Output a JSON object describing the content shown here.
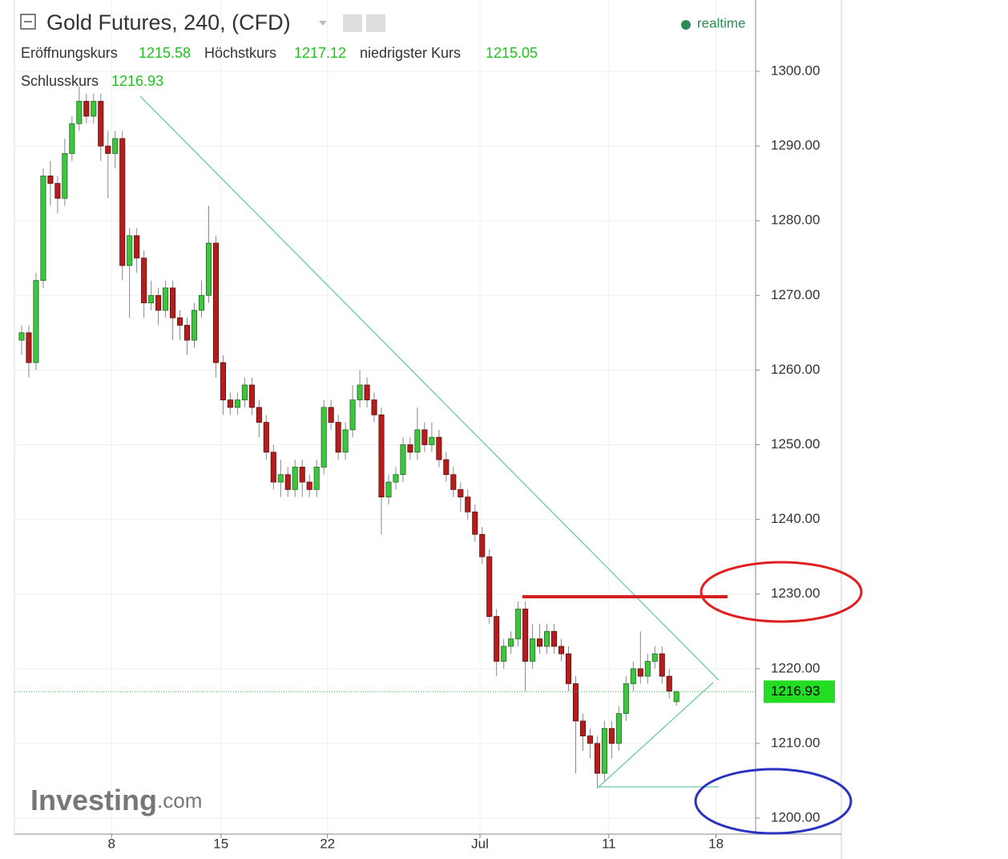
{
  "chart_data": {
    "type": "candlestick",
    "title": "Gold Futures, 240, (CFD)",
    "status": "realtime",
    "open_label": "Eröffnungskurs",
    "high_label": "Höchstkurs",
    "low_label": "niedrigster Kurs",
    "close_label": "Schlusskurs",
    "watermark": "Investing",
    "watermark_suffix": ".com",
    "up_color": "#3ec43e",
    "down_color": "#b71c1c",
    "grid": true,
    "x": [
      1,
      2,
      3,
      4,
      5,
      6,
      7,
      8,
      9,
      10,
      11,
      12,
      13,
      14,
      15,
      16,
      17,
      18,
      19,
      20,
      21,
      22,
      23,
      24,
      25,
      26,
      27,
      28,
      29,
      30,
      31,
      32,
      33,
      34,
      35,
      36,
      37,
      38,
      39,
      40,
      41,
      42,
      43,
      44,
      45,
      46,
      47,
      48,
      49,
      50,
      51,
      52,
      53,
      54,
      55,
      56,
      57,
      58,
      59,
      60,
      61,
      62,
      63,
      64,
      65,
      66,
      67,
      68,
      69,
      70,
      71,
      72,
      73,
      74,
      75,
      76,
      77,
      78,
      79,
      80,
      81,
      82,
      83,
      84,
      85,
      86,
      87,
      88,
      89,
      90,
      91,
      92
    ],
    "open": [
      1264,
      1265,
      1261,
      1272,
      1286,
      1285,
      1283,
      1289,
      1293,
      1296,
      1294,
      1296,
      1290,
      1289,
      1291,
      1274,
      1278,
      1275,
      1269,
      1270,
      1268,
      1271,
      1267,
      1266,
      1264,
      1268,
      1270,
      1277,
      1261,
      1256,
      1255,
      1256,
      1258,
      1255,
      1253,
      1249,
      1245,
      1246,
      1244,
      1247,
      1245,
      1244,
      1247,
      1255,
      1253,
      1249,
      1252,
      1256,
      1258,
      1256,
      1254,
      1243,
      1245,
      1246,
      1250,
      1249,
      1252,
      1250,
      1251,
      1248,
      1246,
      1244,
      1243,
      1241,
      1238,
      1235,
      1227,
      1221,
      1223,
      1224,
      1228,
      1221,
      1224,
      1223,
      1225,
      1223,
      1222,
      1218,
      1213,
      1211,
      1210,
      1206,
      1212,
      1210,
      1214,
      1218,
      1220,
      1219,
      1221,
      1222,
      1219,
      1215.58
    ],
    "high": [
      1266,
      1266,
      1273,
      1287,
      1288,
      1286,
      1291,
      1294,
      1298,
      1297,
      1297,
      1297,
      1292,
      1292,
      1292,
      1279,
      1279,
      1276,
      1272,
      1271,
      1272,
      1272,
      1268,
      1267,
      1269,
      1272,
      1282,
      1278,
      1262,
      1257,
      1257,
      1259,
      1259,
      1256,
      1254,
      1250,
      1248,
      1247,
      1248,
      1248,
      1246,
      1248,
      1256,
      1256,
      1254,
      1253,
      1258,
      1260,
      1259,
      1257,
      1255,
      1246,
      1247,
      1251,
      1251,
      1255,
      1253,
      1253,
      1252,
      1249,
      1247,
      1245,
      1244,
      1242,
      1239,
      1236,
      1228,
      1224,
      1225,
      1229,
      1229,
      1226,
      1226,
      1226,
      1226,
      1224,
      1223,
      1219,
      1214,
      1212,
      1211,
      1213,
      1213,
      1215,
      1219,
      1221,
      1225,
      1222,
      1223,
      1223,
      1220,
      1217.12
    ],
    "low": [
      1262,
      1259,
      1260,
      1271,
      1282,
      1281,
      1282,
      1288,
      1292,
      1293,
      1293,
      1288,
      1283,
      1287,
      1272,
      1267,
      1273,
      1267,
      1268,
      1266,
      1267,
      1264,
      1264,
      1262,
      1263,
      1267,
      1269,
      1259,
      1254,
      1254,
      1254,
      1255,
      1254,
      1251,
      1248,
      1244,
      1243,
      1243,
      1243,
      1243,
      1243,
      1243,
      1246,
      1252,
      1248,
      1248,
      1251,
      1255,
      1255,
      1253,
      1238,
      1242,
      1244,
      1245,
      1248,
      1248,
      1249,
      1249,
      1247,
      1245,
      1243,
      1241,
      1240,
      1237,
      1234,
      1226,
      1219,
      1220,
      1222,
      1223,
      1217,
      1220,
      1222,
      1222,
      1222,
      1221,
      1217,
      1206,
      1209,
      1208,
      1204,
      1205,
      1208,
      1209,
      1213,
      1217,
      1218,
      1218,
      1220,
      1218,
      1216,
      1215.05
    ],
    "close": [
      1265,
      1261,
      1272,
      1286,
      1285,
      1283,
      1289,
      1293,
      1296,
      1294,
      1296,
      1290,
      1289,
      1291,
      1274,
      1278,
      1275,
      1269,
      1270,
      1268,
      1271,
      1267,
      1266,
      1264,
      1268,
      1270,
      1277,
      1261,
      1256,
      1255,
      1256,
      1258,
      1255,
      1253,
      1249,
      1245,
      1246,
      1244,
      1247,
      1245,
      1244,
      1247,
      1255,
      1253,
      1249,
      1252,
      1256,
      1258,
      1256,
      1254,
      1243,
      1245,
      1246,
      1250,
      1249,
      1252,
      1250,
      1251,
      1248,
      1246,
      1244,
      1243,
      1241,
      1238,
      1235,
      1227,
      1221,
      1223,
      1224,
      1228,
      1221,
      1224,
      1223,
      1225,
      1223,
      1222,
      1218,
      1213,
      1211,
      1210,
      1206,
      1212,
      1210,
      1214,
      1218,
      1220,
      1219,
      1221,
      1222,
      1219,
      1217,
      1216.93
    ],
    "xlim": [
      0,
      103
    ],
    "xticks": [
      {
        "value": 13.5,
        "label": "8"
      },
      {
        "value": 28.7,
        "label": "15"
      },
      {
        "value": 43.5,
        "label": "22"
      },
      {
        "value": 64.7,
        "label": "Jul"
      },
      {
        "value": 82.6,
        "label": "11"
      },
      {
        "value": 97.5,
        "label": "18"
      }
    ],
    "ylim": [
      1197.85,
      1309.56
    ],
    "yticks": [
      {
        "value": 1200,
        "label": "1200.00"
      },
      {
        "value": 1210,
        "label": "1210.00"
      },
      {
        "value": 1220,
        "label": "1220.00"
      },
      {
        "value": 1230,
        "label": "1230.00"
      },
      {
        "value": 1240,
        "label": "1240.00"
      },
      {
        "value": 1250,
        "label": "1250.00"
      },
      {
        "value": 1260,
        "label": "1260.00"
      },
      {
        "value": 1270,
        "label": "1270.00"
      },
      {
        "value": 1280,
        "label": "1280.00"
      },
      {
        "value": 1290,
        "label": "1290.00"
      },
      {
        "value": 1300,
        "label": "1300.00"
      }
    ]
  }
}
